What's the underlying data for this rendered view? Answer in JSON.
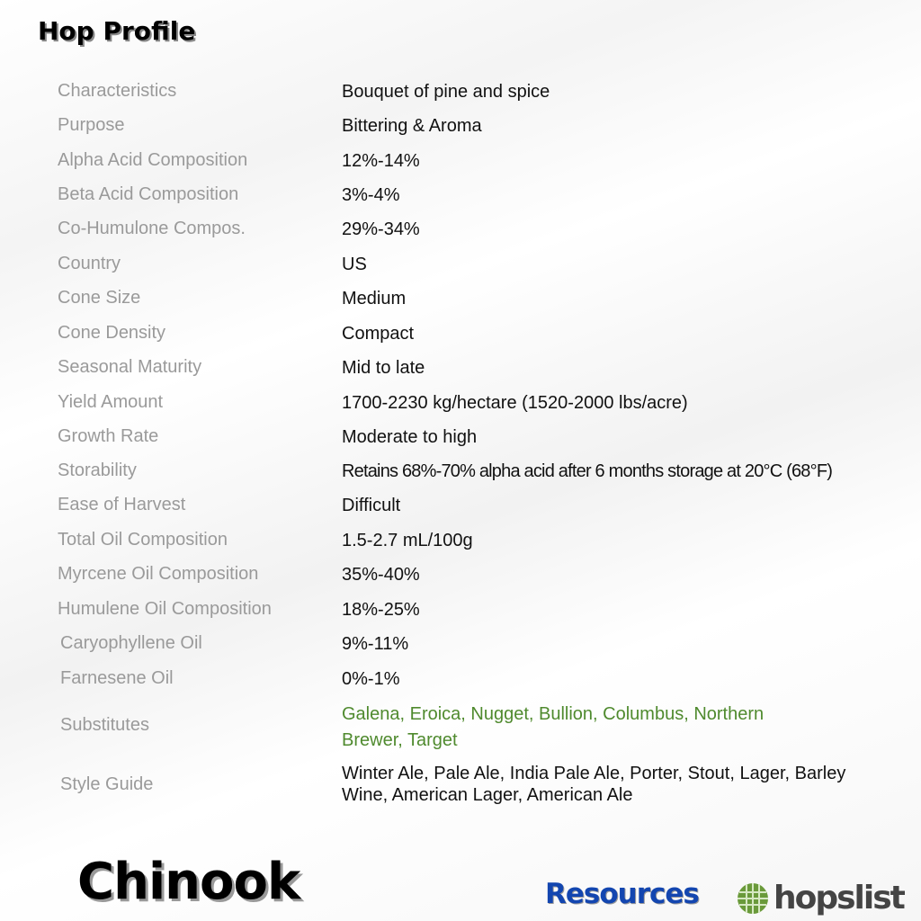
{
  "title": "Hop Profile",
  "rows": [
    {
      "label": "Characteristics",
      "value": "Bouquet of pine and spice"
    },
    {
      "label": "Purpose",
      "value": "Bittering & Aroma"
    },
    {
      "label": "Alpha Acid Composition",
      "value": "12%-14%"
    },
    {
      "label": "Beta Acid Composition",
      "value": "3%-4%"
    },
    {
      "label": "Co-Humulone Compos.",
      "value": "29%-34%"
    },
    {
      "label": "Country",
      "value": "US"
    },
    {
      "label": "Cone Size",
      "value": "Medium"
    },
    {
      "label": "Cone Density",
      "value": "Compact"
    },
    {
      "label": "Seasonal Maturity",
      "value": "Mid to late"
    },
    {
      "label": "Yield Amount",
      "value": "1700-2230 kg/hectare (1520-2000 lbs/acre)"
    },
    {
      "label": "Growth Rate",
      "value": "Moderate to high"
    },
    {
      "label": "Storability",
      "value": "Retains 68%-70% alpha acid after 6 months storage at 20°C (68°F)"
    },
    {
      "label": "Ease of Harvest",
      "value": "Difficult"
    },
    {
      "label": "Total Oil Composition",
      "value": "1.5-2.7 mL/100g"
    },
    {
      "label": "Myrcene Oil Composition",
      "value": "35%-40%"
    },
    {
      "label": "Humulene Oil Composition",
      "value": "18%-25%"
    },
    {
      "label": "Caryophyllene Oil",
      "value": "9%-11%"
    },
    {
      "label": "Farnesene Oil",
      "value": "0%-1%"
    },
    {
      "label": "Substitutes",
      "value": "Galena, Eroica, Nugget, Bullion, Columbus, Northern Brewer, Target"
    },
    {
      "label": "Style Guide",
      "value": "Winter Ale, Pale Ale, India Pale Ale, Porter, Stout, Lager, Barley Wine, American Lager, American Ale"
    }
  ],
  "hop_name": "Chinook",
  "resources_label": "Resources",
  "logo_text": "hopslist",
  "colors": {
    "substitutes": "#4f8a2e",
    "resources": "#1346b0",
    "label": "#9a9a9a"
  }
}
